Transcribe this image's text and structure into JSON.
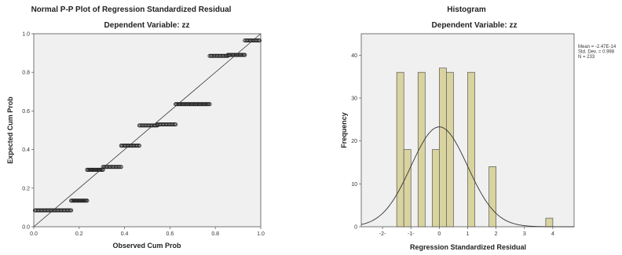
{
  "chart_data": [
    {
      "type": "scatter",
      "title": "Normal P-P Plot of Regression Standardized Residual",
      "subtitle": "Dependent Variable: zz",
      "xlabel": "Observed Cum Prob",
      "ylabel": "Expected Cum Prob",
      "xlim": [
        0,
        1
      ],
      "ylim": [
        0,
        1
      ],
      "xticks": [
        "0.0",
        "0.2",
        "0.4",
        "0.6",
        "0.8",
        "1.0"
      ],
      "yticks": [
        "0.0",
        "0.2",
        "0.4",
        "0.6",
        "0.8",
        "1.0"
      ],
      "reference_line": [
        [
          0,
          0
        ],
        [
          1,
          1
        ]
      ],
      "point_groups": [
        {
          "y": 0.085,
          "x_start": 0.005,
          "x_end": 0.165,
          "n": 36
        },
        {
          "y": 0.135,
          "x_start": 0.165,
          "x_end": 0.235,
          "n": 18
        },
        {
          "y": 0.295,
          "x_start": 0.235,
          "x_end": 0.305,
          "n": 18
        },
        {
          "y": 0.31,
          "x_start": 0.305,
          "x_end": 0.385,
          "n": 18
        },
        {
          "y": 0.42,
          "x_start": 0.385,
          "x_end": 0.465,
          "n": 18
        },
        {
          "y": 0.525,
          "x_start": 0.465,
          "x_end": 0.545,
          "n": 18
        },
        {
          "y": 0.53,
          "x_start": 0.545,
          "x_end": 0.625,
          "n": 18
        },
        {
          "y": 0.635,
          "x_start": 0.625,
          "x_end": 0.775,
          "n": 36
        },
        {
          "y": 0.885,
          "x_start": 0.775,
          "x_end": 0.855,
          "n": 18
        },
        {
          "y": 0.89,
          "x_start": 0.855,
          "x_end": 0.93,
          "n": 18
        },
        {
          "y": 0.965,
          "x_start": 0.93,
          "x_end": 0.995,
          "n": 15
        }
      ],
      "grid": false,
      "background": "#f0f0f0",
      "marker_color": "#222222"
    },
    {
      "type": "bar",
      "title": "Histogram",
      "subtitle": "Dependent Variable: zz",
      "xlabel": "Regression Standardized Residual",
      "ylabel": "Frequency",
      "xlim": [
        -2.75,
        4.75
      ],
      "ylim": [
        0,
        45
      ],
      "xticks": [
        -2,
        -1,
        0,
        1,
        2,
        3,
        4
      ],
      "yticks": [
        0,
        10,
        20,
        30,
        40
      ],
      "bin_width": 0.25,
      "bins": [
        {
          "x": -1.375,
          "value": 36
        },
        {
          "x": -1.125,
          "value": 18
        },
        {
          "x": -0.625,
          "value": 36
        },
        {
          "x": -0.125,
          "value": 18
        },
        {
          "x": 0.125,
          "value": 37
        },
        {
          "x": 0.375,
          "value": 36
        },
        {
          "x": 1.125,
          "value": 36
        },
        {
          "x": 1.875,
          "value": 14
        },
        {
          "x": 3.875,
          "value": 2
        }
      ],
      "normal_curve": {
        "mean": 0,
        "sd": 0.998,
        "n": 233,
        "bin_width": 0.25
      },
      "stats": [
        "Mean = -2.47E-14",
        "Std. Dev. = 0.998",
        "N = 233"
      ],
      "grid": false,
      "background": "#f0f0f0",
      "bar_color": "#d9d3a0",
      "bar_border": "#555555"
    }
  ]
}
